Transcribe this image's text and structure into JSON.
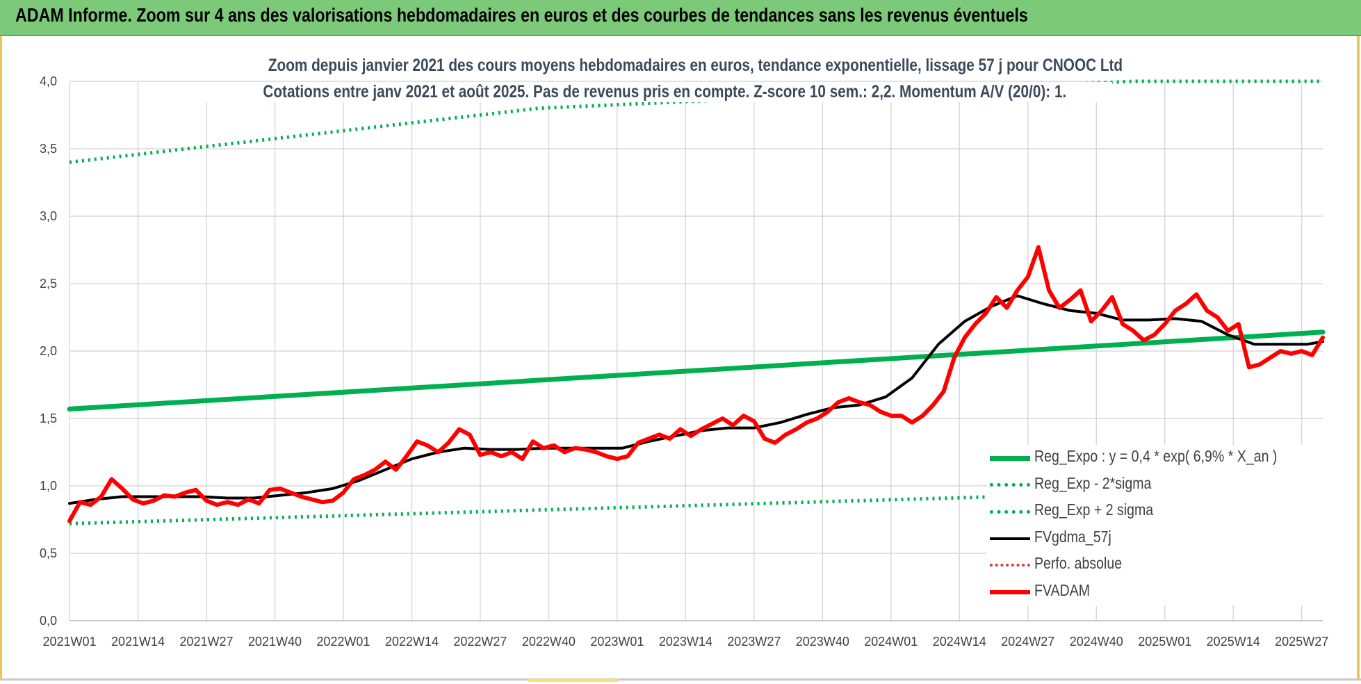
{
  "banner": {
    "title": "ADAM Informe. Zoom sur 4 ans des valorisations hebdomadaires en euros et des courbes de tendances sans les revenus éventuels"
  },
  "colors": {
    "banner_bg": "#7dc97a",
    "reg_expo": "#00b050",
    "fvgdma": "#000000",
    "fvadam": "#ff0000",
    "perfo": "#e03030",
    "grid": "#d9d9d9"
  },
  "chart_data": {
    "type": "line",
    "title": "Zoom depuis janvier 2021 des cours moyens hebdomadaires en euros, tendance exponentielle, lissage 57 j pour CNOOC Ltd",
    "subtitle": "Cotations entre janv 2021 et août 2025.  Pas de revenus pris en compte. Z-score 10 sem.: 2,2. Momentum A/V (20/0): 1.",
    "xlabel": "",
    "ylabel": "",
    "ylim": [
      0,
      4
    ],
    "yticks": [
      "0,0",
      "0,5",
      "1,0",
      "1,5",
      "2,0",
      "2,5",
      "3,0",
      "3,5",
      "4,0"
    ],
    "x_tick_labels": [
      "2021W01",
      "2021W14",
      "2021W27",
      "2021W40",
      "2022W01",
      "2022W14",
      "2022W27",
      "2022W40",
      "2023W01",
      "2023W14",
      "2023W27",
      "2023W40",
      "2024W01",
      "2024W14",
      "2024W27",
      "2024W40",
      "2025W01",
      "2025W14",
      "2025W27"
    ],
    "x_range_weeks": [
      0,
      238
    ],
    "grid": true,
    "legend_position": "bottom-right",
    "series": [
      {
        "name": "Reg_Expo : y = 0,4 * exp( 6,9% *  X_an )",
        "style": "solid",
        "color": "#00b050",
        "x": [
          0,
          238
        ],
        "y": [
          1.57,
          2.14
        ]
      },
      {
        "name": "Reg_Exp - 2*sigma",
        "style": "dotted",
        "color": "#00b050",
        "x": [
          0,
          238
        ],
        "y": [
          0.72,
          0.99
        ]
      },
      {
        "name": "Reg_Exp + 2 sigma",
        "style": "dotted",
        "color": "#00b050",
        "x": [
          0,
          89,
          202,
          238
        ],
        "y": [
          3.4,
          3.8,
          4.0,
          4.0
        ]
      },
      {
        "name": "FVgdma_57j",
        "style": "solid",
        "color": "#000000",
        "x": [
          0,
          5,
          10,
          15,
          20,
          25,
          30,
          35,
          40,
          45,
          50,
          55,
          60,
          65,
          70,
          75,
          80,
          85,
          90,
          95,
          100,
          105,
          110,
          115,
          120,
          125,
          130,
          135,
          140,
          145,
          150,
          155,
          160,
          165,
          170,
          175,
          180,
          185,
          190,
          195,
          200,
          205,
          210,
          215,
          220,
          225,
          230,
          235,
          238
        ],
        "y": [
          0.87,
          0.9,
          0.92,
          0.92,
          0.92,
          0.92,
          0.91,
          0.91,
          0.93,
          0.95,
          0.98,
          1.04,
          1.12,
          1.2,
          1.25,
          1.28,
          1.27,
          1.27,
          1.28,
          1.28,
          1.28,
          1.28,
          1.33,
          1.37,
          1.41,
          1.43,
          1.43,
          1.47,
          1.53,
          1.58,
          1.6,
          1.66,
          1.8,
          2.05,
          2.22,
          2.33,
          2.41,
          2.35,
          2.3,
          2.28,
          2.23,
          2.23,
          2.24,
          2.22,
          2.12,
          2.05,
          2.05,
          2.05,
          2.07
        ]
      },
      {
        "name": "Perfo. absolue",
        "style": "dotted",
        "color": "#e03030",
        "x": [],
        "y": []
      },
      {
        "name": "FVADAM",
        "style": "solid",
        "color": "#ff0000",
        "x": [
          0,
          2,
          4,
          6,
          8,
          10,
          12,
          14,
          16,
          18,
          20,
          22,
          24,
          26,
          28,
          30,
          32,
          34,
          36,
          38,
          40,
          42,
          44,
          46,
          48,
          50,
          52,
          54,
          56,
          58,
          60,
          62,
          64,
          66,
          68,
          70,
          72,
          74,
          76,
          78,
          80,
          82,
          84,
          86,
          88,
          90,
          92,
          94,
          96,
          98,
          100,
          102,
          104,
          106,
          108,
          110,
          112,
          114,
          116,
          118,
          120,
          122,
          124,
          126,
          128,
          130,
          132,
          134,
          136,
          138,
          140,
          142,
          144,
          146,
          148,
          150,
          152,
          154,
          156,
          158,
          160,
          162,
          164,
          166,
          168,
          170,
          172,
          174,
          176,
          178,
          180,
          182,
          184,
          186,
          188,
          190,
          192,
          194,
          196,
          198,
          200,
          202,
          204,
          206,
          208,
          210,
          212,
          214,
          216,
          218,
          220,
          222,
          224,
          226,
          228,
          230,
          232,
          234,
          236,
          238
        ],
        "y": [
          0.74,
          0.88,
          0.86,
          0.92,
          1.05,
          0.98,
          0.9,
          0.87,
          0.89,
          0.93,
          0.92,
          0.95,
          0.97,
          0.89,
          0.86,
          0.88,
          0.86,
          0.9,
          0.87,
          0.97,
          0.98,
          0.95,
          0.92,
          0.9,
          0.88,
          0.89,
          0.95,
          1.05,
          1.08,
          1.12,
          1.18,
          1.12,
          1.22,
          1.33,
          1.3,
          1.25,
          1.32,
          1.42,
          1.38,
          1.23,
          1.25,
          1.22,
          1.25,
          1.2,
          1.33,
          1.28,
          1.3,
          1.25,
          1.28,
          1.27,
          1.25,
          1.22,
          1.2,
          1.22,
          1.32,
          1.35,
          1.38,
          1.35,
          1.42,
          1.37,
          1.42,
          1.46,
          1.5,
          1.45,
          1.52,
          1.48,
          1.35,
          1.32,
          1.38,
          1.42,
          1.47,
          1.5,
          1.55,
          1.62,
          1.65,
          1.62,
          1.6,
          1.55,
          1.52,
          1.52,
          1.47,
          1.52,
          1.6,
          1.7,
          1.95,
          2.1,
          2.2,
          2.28,
          2.4,
          2.32,
          2.45,
          2.55,
          2.77,
          2.45,
          2.32,
          2.38,
          2.45,
          2.22,
          2.3,
          2.4,
          2.2,
          2.15,
          2.08,
          2.12,
          2.2,
          2.3,
          2.35,
          2.42,
          2.3,
          2.25,
          2.15,
          2.2,
          1.88,
          1.9,
          1.95,
          2.0,
          1.98,
          2.0,
          1.97,
          2.1
        ]
      }
    ]
  }
}
